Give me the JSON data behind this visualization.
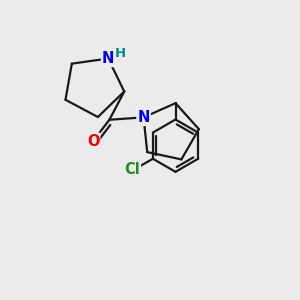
{
  "background_color": "#ebebeb",
  "bond_color": "#1a1a1a",
  "N_color": "#0000ee",
  "O_color": "#ee0000",
  "Cl_color": "#228B22",
  "H_color": "#008b8b",
  "line_width": 1.6,
  "font_size_atoms": 10.5,
  "figsize": [
    3.0,
    3.0
  ],
  "dpi": 100,
  "xlim": [
    0,
    10
  ],
  "ylim": [
    0,
    10
  ]
}
